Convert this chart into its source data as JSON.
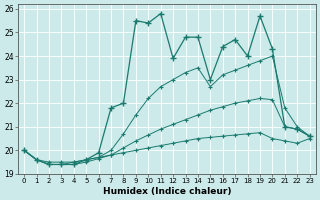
{
  "xlabel": "Humidex (Indice chaleur)",
  "xlim": [
    -0.5,
    23.5
  ],
  "ylim": [
    19,
    26.2
  ],
  "yticks": [
    19,
    20,
    21,
    22,
    23,
    24,
    25,
    26
  ],
  "xticks": [
    0,
    1,
    2,
    3,
    4,
    5,
    6,
    7,
    8,
    9,
    10,
    11,
    12,
    13,
    14,
    15,
    16,
    17,
    18,
    19,
    20,
    21,
    22,
    23
  ],
  "color": "#1a7a6e",
  "bg_color": "#cceaea",
  "line1_x": [
    0,
    1,
    2,
    3,
    4,
    5,
    6,
    7,
    8,
    9,
    10,
    11,
    12,
    13,
    14,
    15,
    16,
    17,
    18,
    19,
    20,
    21,
    22,
    23
  ],
  "line1_y": [
    20.0,
    19.6,
    19.4,
    19.4,
    19.4,
    19.6,
    19.9,
    21.8,
    22.0,
    25.5,
    25.4,
    25.8,
    23.9,
    24.8,
    24.8,
    23.0,
    24.4,
    24.7,
    24.0,
    25.7,
    24.3,
    21.0,
    20.9,
    20.6
  ],
  "line2_x": [
    0,
    1,
    2,
    3,
    4,
    5,
    6,
    7,
    8,
    9,
    10,
    11,
    12,
    13,
    14,
    15,
    16,
    17,
    18,
    19,
    20,
    21,
    22,
    23
  ],
  "line2_y": [
    20.0,
    19.6,
    19.5,
    19.5,
    19.5,
    19.6,
    19.7,
    20.0,
    20.7,
    21.5,
    22.2,
    22.7,
    23.0,
    23.3,
    23.5,
    22.7,
    23.2,
    23.4,
    23.6,
    23.8,
    24.0,
    21.8,
    21.0,
    20.6
  ],
  "line3_x": [
    0,
    1,
    2,
    3,
    4,
    5,
    6,
    7,
    8,
    9,
    10,
    11,
    12,
    13,
    14,
    15,
    16,
    17,
    18,
    19,
    20,
    21,
    22,
    23
  ],
  "line3_y": [
    20.0,
    19.6,
    19.4,
    19.4,
    19.4,
    19.5,
    19.65,
    19.8,
    20.1,
    20.4,
    20.65,
    20.9,
    21.1,
    21.3,
    21.5,
    21.7,
    21.85,
    22.0,
    22.1,
    22.2,
    22.15,
    21.0,
    20.9,
    20.6
  ],
  "line4_x": [
    0,
    1,
    2,
    3,
    4,
    5,
    6,
    7,
    8,
    9,
    10,
    11,
    12,
    13,
    14,
    15,
    16,
    17,
    18,
    19,
    20,
    21,
    22,
    23
  ],
  "line4_y": [
    20.0,
    19.6,
    19.4,
    19.4,
    19.5,
    19.6,
    19.7,
    19.8,
    19.9,
    20.0,
    20.1,
    20.2,
    20.3,
    20.4,
    20.5,
    20.55,
    20.6,
    20.65,
    20.7,
    20.75,
    20.5,
    20.4,
    20.3,
    20.5
  ]
}
